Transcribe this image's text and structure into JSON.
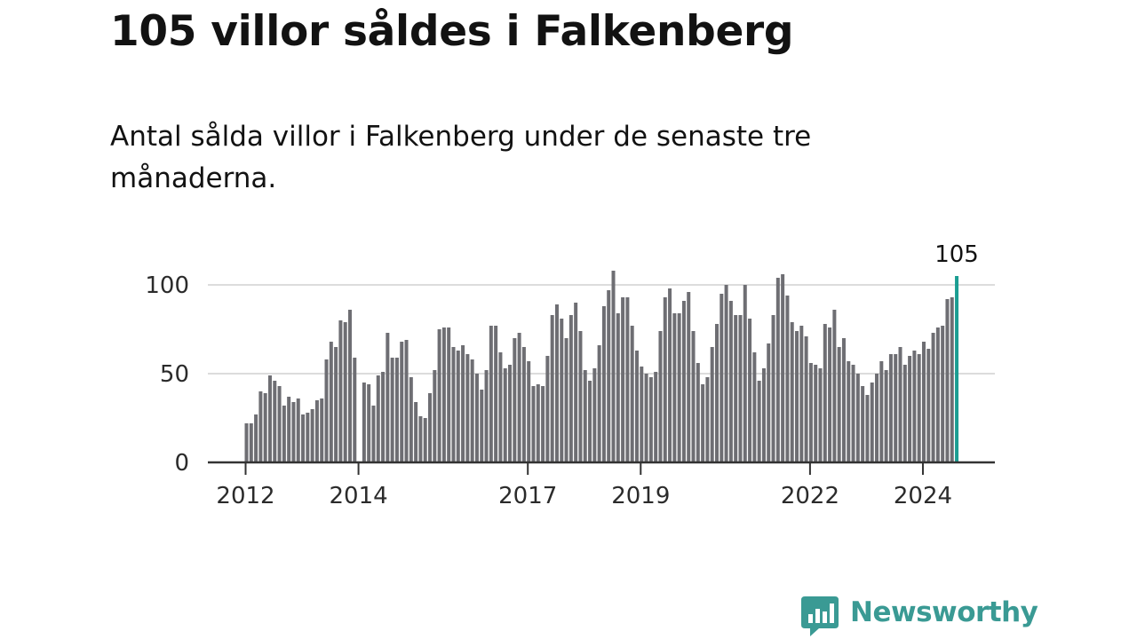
{
  "title": "105 villor såldes i Falkenberg",
  "subtitle": "Antal sålda villor i Falkenberg under de senaste tre månaderna.",
  "brand": {
    "name": "Newsworthy",
    "icon": "bar-chart-speech-bubble-icon"
  },
  "colors": {
    "bar": "#6e6e73",
    "highlight": "#1a9d92",
    "brand": "#3a9a94",
    "grid": "#dcdcdc",
    "axis": "#333333"
  },
  "chart_data": {
    "type": "bar",
    "x_start": "2012-01",
    "x_ticks": [
      "2012",
      "2014",
      "2017",
      "2019",
      "2022",
      "2024"
    ],
    "y_ticks": [
      0,
      50,
      100
    ],
    "ylim": [
      0,
      110
    ],
    "grid": true,
    "highlight_last": true,
    "last_value_label": "105",
    "values": [
      22,
      22,
      27,
      40,
      39,
      49,
      46,
      43,
      32,
      37,
      34,
      36,
      27,
      28,
      30,
      35,
      36,
      58,
      68,
      65,
      80,
      79,
      86,
      59,
      0,
      45,
      44,
      32,
      49,
      51,
      73,
      59,
      59,
      68,
      69,
      48,
      34,
      26,
      25,
      39,
      52,
      75,
      76,
      76,
      65,
      63,
      66,
      61,
      58,
      50,
      41,
      52,
      77,
      77,
      62,
      53,
      55,
      70,
      73,
      65,
      57,
      43,
      44,
      43,
      60,
      83,
      89,
      81,
      70,
      83,
      90,
      74,
      52,
      46,
      53,
      66,
      88,
      97,
      108,
      84,
      93,
      93,
      77,
      63,
      54,
      50,
      48,
      51,
      74,
      93,
      98,
      84,
      84,
      91,
      96,
      74,
      56,
      44,
      48,
      65,
      78,
      95,
      100,
      91,
      83,
      83,
      100,
      81,
      62,
      46,
      53,
      67,
      83,
      104,
      106,
      94,
      79,
      74,
      77,
      71,
      56,
      55,
      53,
      78,
      76,
      86,
      65,
      70,
      57,
      55,
      50,
      43,
      38,
      45,
      50,
      57,
      52,
      61,
      61,
      65,
      55,
      60,
      63,
      61,
      68,
      64,
      73,
      76,
      77,
      92,
      93,
      105
    ]
  }
}
